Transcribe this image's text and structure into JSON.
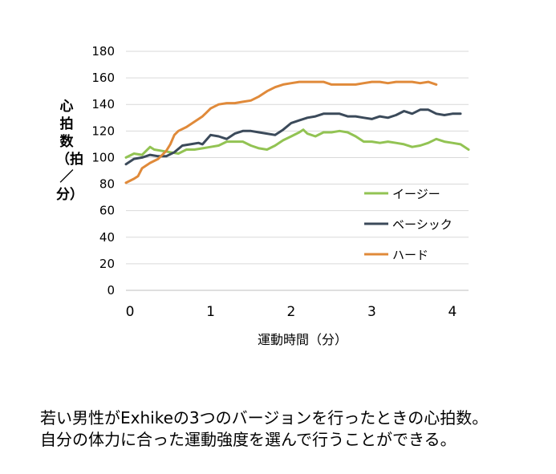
{
  "chart_data": {
    "type": "line",
    "title": "",
    "xlabel": "運動時間（分）",
    "ylabel": "心拍数（拍／分）",
    "xlim": [
      -0.05,
      4.2
    ],
    "ylim": [
      0,
      180
    ],
    "xticks": [
      0,
      1,
      2,
      3,
      4
    ],
    "yticks": [
      0,
      20,
      40,
      60,
      80,
      100,
      120,
      140,
      160,
      180
    ],
    "grid": "horizontal",
    "legend_position": "right-center",
    "series": [
      {
        "name": "イージー",
        "color": "#92c353",
        "x": [
          -0.05,
          0.05,
          0.15,
          0.25,
          0.3,
          0.4,
          0.5,
          0.6,
          0.7,
          0.8,
          0.9,
          1.0,
          1.1,
          1.2,
          1.3,
          1.4,
          1.5,
          1.6,
          1.7,
          1.8,
          1.9,
          2.0,
          2.1,
          2.15,
          2.2,
          2.3,
          2.4,
          2.5,
          2.6,
          2.7,
          2.8,
          2.9,
          3.0,
          3.1,
          3.2,
          3.3,
          3.4,
          3.5,
          3.6,
          3.7,
          3.8,
          3.9,
          4.0,
          4.1,
          4.2
        ],
        "values": [
          100,
          103,
          102,
          108,
          106,
          105,
          104,
          103,
          106,
          106,
          107,
          108,
          109,
          112,
          112,
          112,
          109,
          107,
          106,
          109,
          113,
          116,
          119,
          121,
          118,
          116,
          119,
          119,
          120,
          119,
          116,
          112,
          112,
          111,
          112,
          111,
          110,
          108,
          109,
          111,
          114,
          112,
          111,
          110,
          106
        ]
      },
      {
        "name": "ベーシック",
        "color": "#3b4a5a",
        "x": [
          -0.05,
          0.05,
          0.15,
          0.25,
          0.35,
          0.45,
          0.55,
          0.65,
          0.75,
          0.85,
          0.9,
          1.0,
          1.1,
          1.2,
          1.3,
          1.4,
          1.5,
          1.6,
          1.7,
          1.8,
          1.9,
          2.0,
          2.1,
          2.2,
          2.3,
          2.4,
          2.5,
          2.6,
          2.7,
          2.8,
          2.9,
          3.0,
          3.1,
          3.2,
          3.3,
          3.4,
          3.5,
          3.6,
          3.7,
          3.8,
          3.9,
          4.0,
          4.1
        ],
        "values": [
          95,
          99,
          100,
          102,
          101,
          101,
          104,
          109,
          110,
          111,
          110,
          117,
          116,
          114,
          118,
          120,
          120,
          119,
          118,
          117,
          121,
          126,
          128,
          130,
          131,
          133,
          133,
          133,
          131,
          131,
          130,
          129,
          131,
          130,
          132,
          135,
          133,
          136,
          136,
          133,
          132,
          133,
          133
        ]
      },
      {
        "name": "ハード",
        "color": "#e08a3a",
        "x": [
          -0.05,
          0.05,
          0.1,
          0.15,
          0.25,
          0.35,
          0.45,
          0.5,
          0.55,
          0.6,
          0.7,
          0.8,
          0.9,
          0.95,
          1.0,
          1.1,
          1.2,
          1.3,
          1.4,
          1.5,
          1.6,
          1.7,
          1.8,
          1.9,
          2.0,
          2.1,
          2.2,
          2.3,
          2.4,
          2.5,
          2.6,
          2.7,
          2.8,
          2.9,
          3.0,
          3.1,
          3.2,
          3.3,
          3.4,
          3.5,
          3.6,
          3.7,
          3.8
        ],
        "values": [
          81,
          84,
          86,
          92,
          96,
          99,
          105,
          110,
          117,
          120,
          123,
          127,
          131,
          134,
          137,
          140,
          141,
          141,
          142,
          143,
          146,
          150,
          153,
          155,
          156,
          157,
          157,
          157,
          157,
          155,
          155,
          155,
          155,
          156,
          157,
          157,
          156,
          157,
          157,
          157,
          156,
          157,
          155
        ]
      }
    ]
  },
  "caption": {
    "line1": "若い男性がExhikeの3つのバージョンを行ったときの心拍数。",
    "line2": "自分の体力に合った運動強度を選んで行うことができる。"
  }
}
